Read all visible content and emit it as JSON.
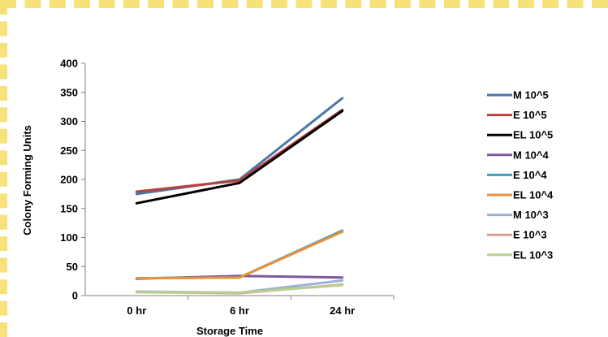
{
  "chart_data": {
    "type": "line",
    "title": "",
    "xlabel": "Storage Time",
    "ylabel": "Colony Forming Units",
    "categories": [
      "0 hr",
      "6 hr",
      "24 hr"
    ],
    "ylim": [
      0,
      400
    ],
    "yticks": [
      0,
      50,
      100,
      150,
      200,
      250,
      300,
      350,
      400
    ],
    "grid": false,
    "legend_position": "right",
    "series": [
      {
        "name": "M 10^5",
        "color": "#4a76a8",
        "values": [
          175,
          200,
          340
        ]
      },
      {
        "name": "E 10^5",
        "color": "#b9413e",
        "values": [
          179,
          198,
          320
        ]
      },
      {
        "name": "EL 10^5",
        "color": "#000000",
        "values": [
          159,
          194,
          318
        ]
      },
      {
        "name": "M 10^4",
        "color": "#7b5a97",
        "values": [
          29,
          34,
          31
        ]
      },
      {
        "name": "E 10^4",
        "color": "#3fa0bd",
        "values": [
          30,
          31,
          112
        ]
      },
      {
        "name": "EL 10^4",
        "color": "#e8913c",
        "values": [
          30,
          31,
          110
        ]
      },
      {
        "name": "M 10^3",
        "color": "#9bb1d6",
        "values": [
          7,
          5,
          26
        ]
      },
      {
        "name": "E 10^3",
        "color": "#de9b98",
        "values": [
          6,
          4,
          19
        ]
      },
      {
        "name": "EL 10^3",
        "color": "#b8d08d",
        "values": [
          6,
          5,
          18
        ]
      }
    ]
  }
}
